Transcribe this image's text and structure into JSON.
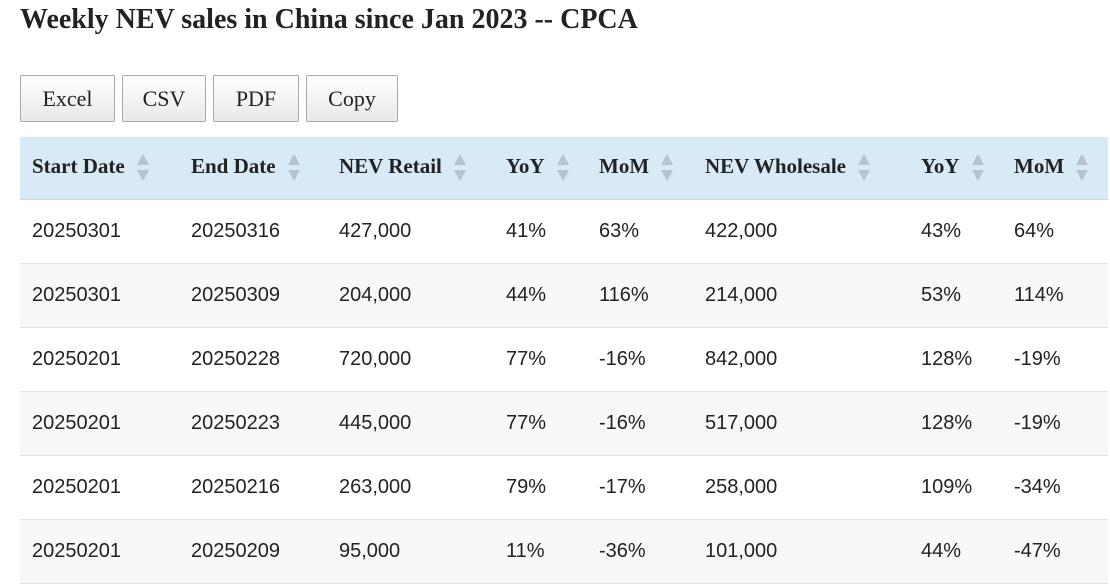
{
  "page": {
    "title": "Weekly NEV sales in China since Jan 2023 -- CPCA"
  },
  "toolbar": {
    "buttons": [
      {
        "label": "Excel"
      },
      {
        "label": "CSV"
      },
      {
        "label": "PDF"
      },
      {
        "label": "Copy"
      }
    ]
  },
  "table": {
    "columns": [
      "Start Date",
      "End Date",
      "NEV Retail",
      "YoY",
      "MoM",
      "NEV Wholesale",
      "YoY",
      "MoM"
    ],
    "rows": [
      [
        "20250301",
        "20250316",
        "427,000",
        "41%",
        "63%",
        "422,000",
        "43%",
        "64%"
      ],
      [
        "20250301",
        "20250309",
        "204,000",
        "44%",
        "116%",
        "214,000",
        "53%",
        "114%"
      ],
      [
        "20250201",
        "20250228",
        "720,000",
        "77%",
        "-16%",
        "842,000",
        "128%",
        "-19%"
      ],
      [
        "20250201",
        "20250223",
        "445,000",
        "77%",
        "-16%",
        "517,000",
        "128%",
        "-19%"
      ],
      [
        "20250201",
        "20250216",
        "263,000",
        "79%",
        "-17%",
        "258,000",
        "109%",
        "-34%"
      ],
      [
        "20250201",
        "20250209",
        "95,000",
        "11%",
        "-36%",
        "101,000",
        "44%",
        "-47%"
      ]
    ]
  },
  "colors": {
    "header_bg": "#d7eaf6",
    "row_alt_bg": "#f8f8f8",
    "sort_icon": "#b8c3cc"
  }
}
